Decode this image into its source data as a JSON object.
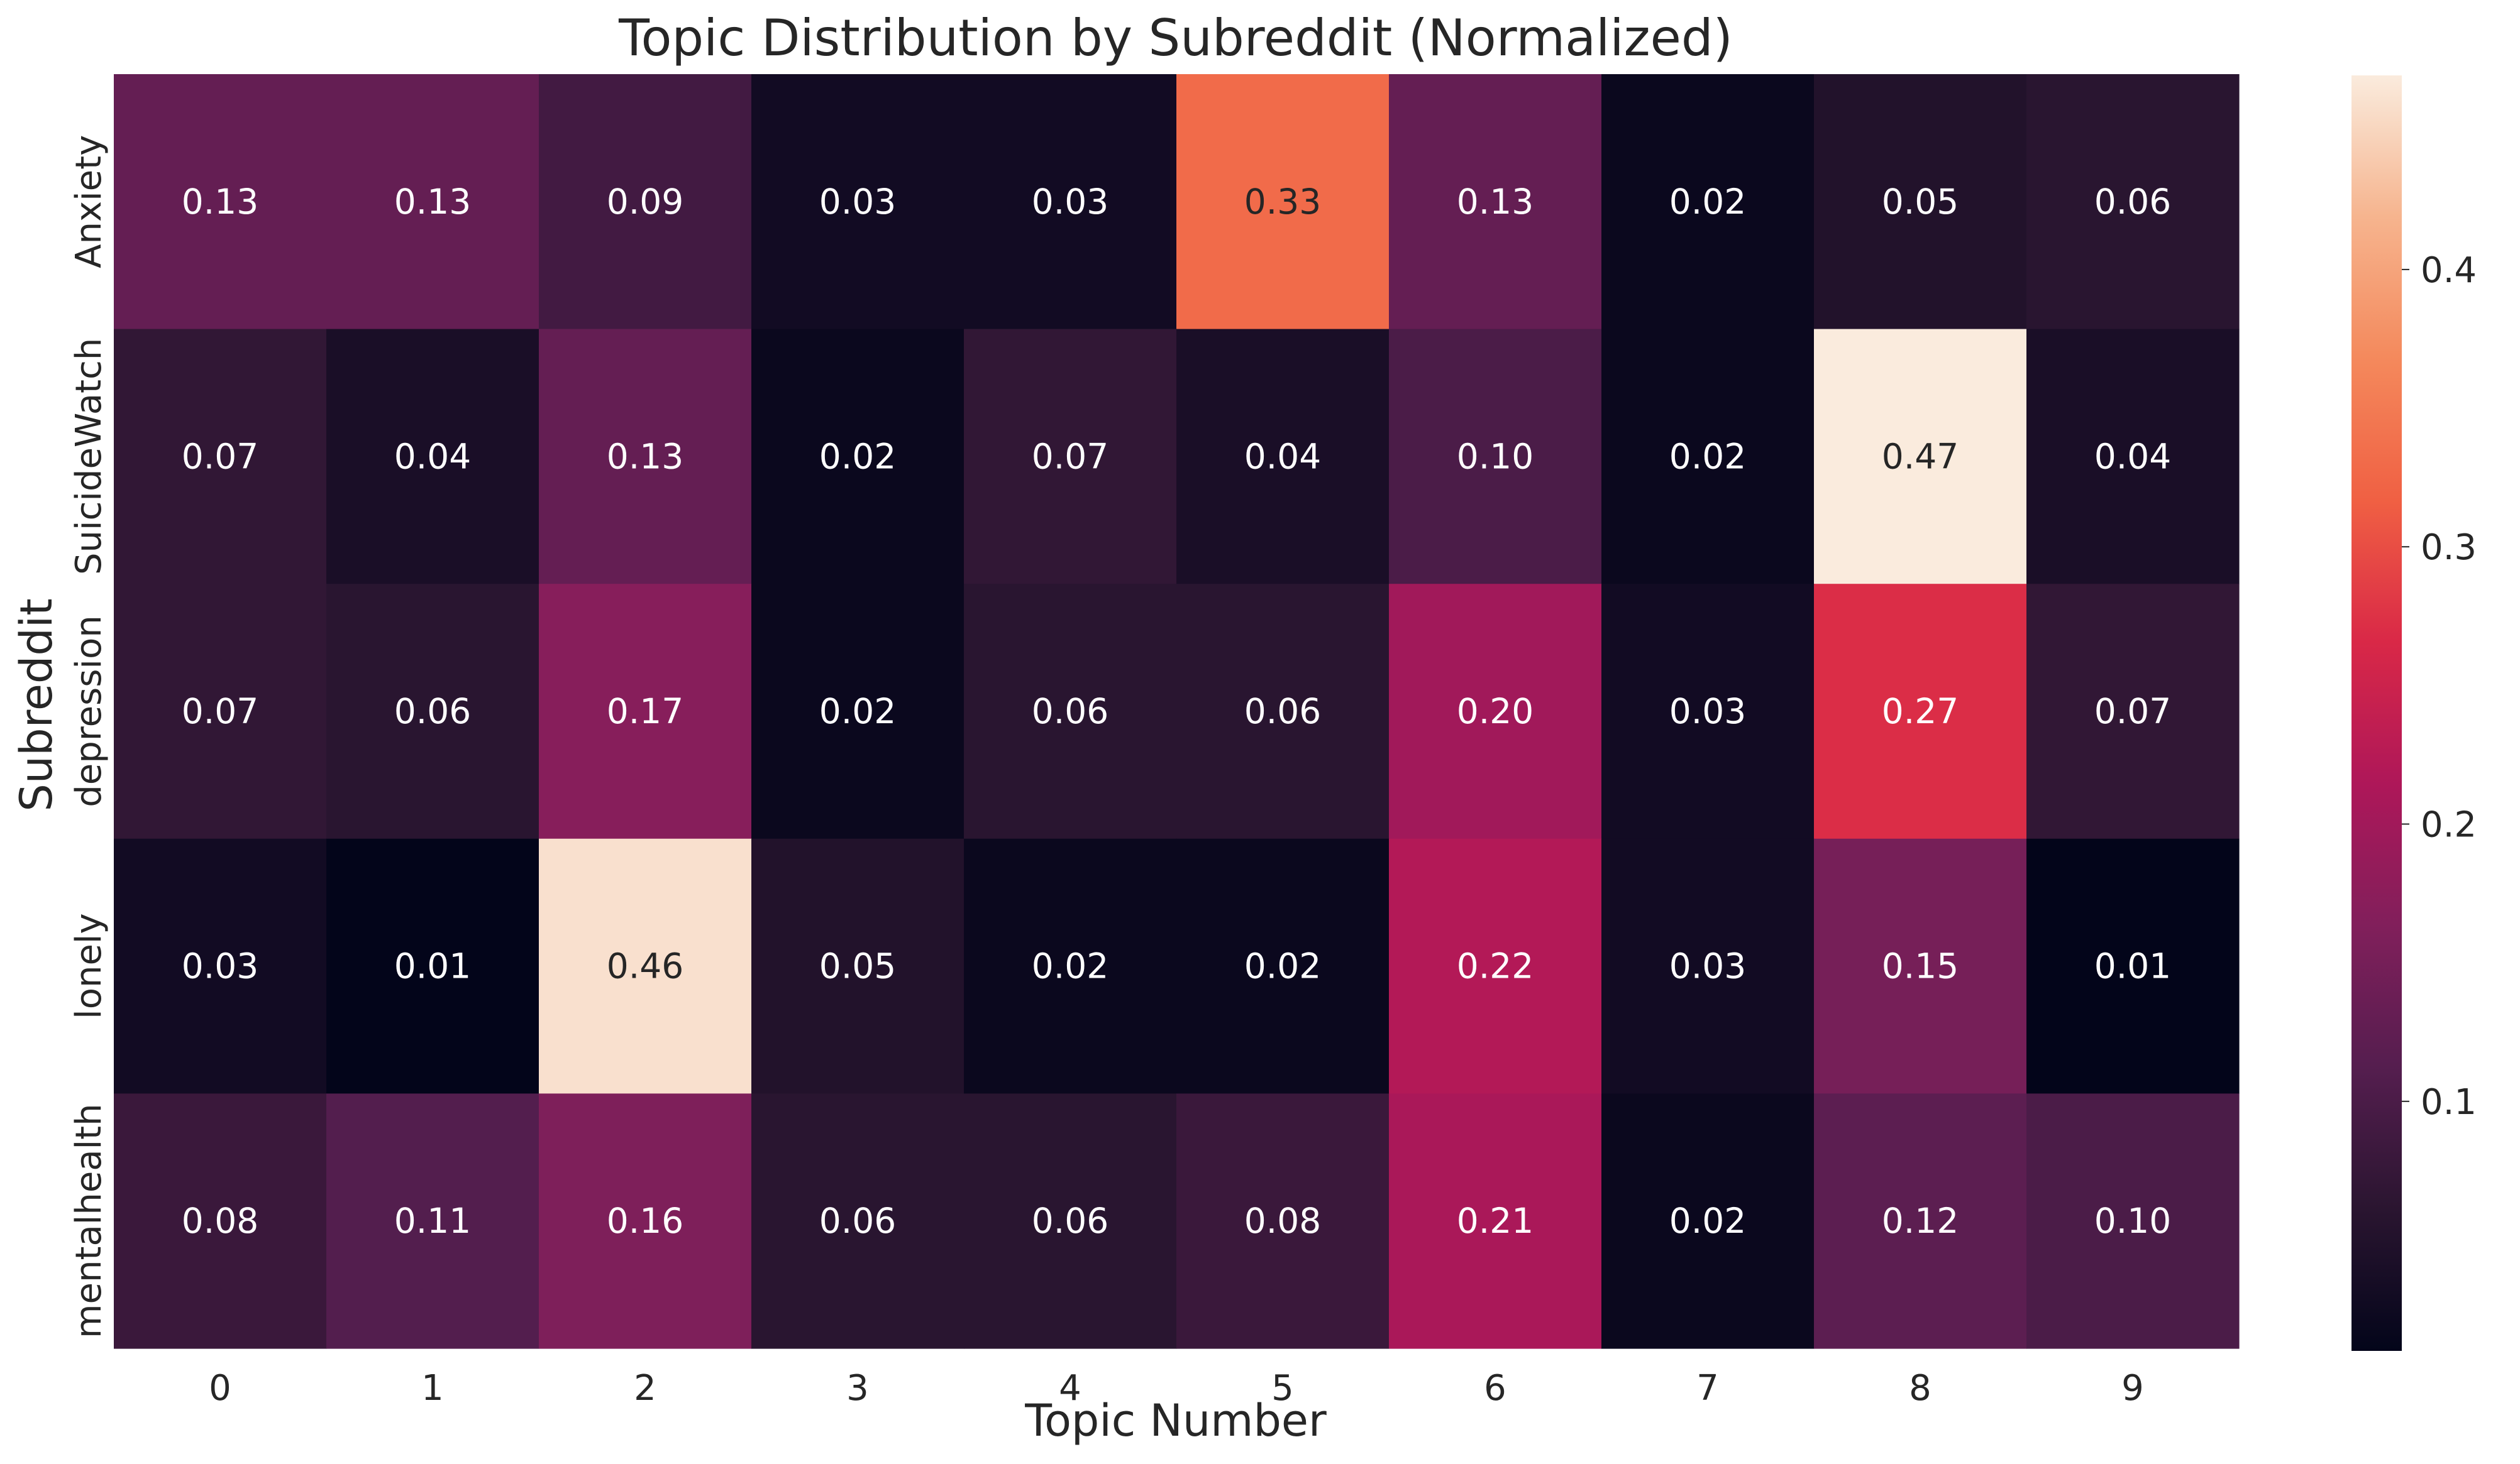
{
  "chart_data": {
    "type": "heatmap",
    "title": "Topic Distribution by Subreddit (Normalized)",
    "xlabel": "Topic Number",
    "ylabel": "Subreddit",
    "x_categories": [
      "0",
      "1",
      "2",
      "3",
      "4",
      "5",
      "6",
      "7",
      "8",
      "9"
    ],
    "y_categories": [
      "Anxiety",
      "SuicideWatch",
      "depression",
      "lonely",
      "mentalhealth"
    ],
    "values": [
      [
        0.13,
        0.13,
        0.09,
        0.03,
        0.03,
        0.33,
        0.13,
        0.02,
        0.05,
        0.06
      ],
      [
        0.07,
        0.04,
        0.13,
        0.02,
        0.07,
        0.04,
        0.1,
        0.02,
        0.47,
        0.04
      ],
      [
        0.07,
        0.06,
        0.17,
        0.02,
        0.06,
        0.06,
        0.2,
        0.03,
        0.27,
        0.07
      ],
      [
        0.03,
        0.01,
        0.46,
        0.05,
        0.02,
        0.02,
        0.22,
        0.03,
        0.15,
        0.01
      ],
      [
        0.08,
        0.11,
        0.16,
        0.06,
        0.06,
        0.08,
        0.21,
        0.02,
        0.12,
        0.1
      ]
    ],
    "value_format": "0.00",
    "colorbar": {
      "min": 0.01,
      "max": 0.47,
      "ticks": [
        0.1,
        0.2,
        0.3,
        0.4
      ],
      "tick_labels": [
        "0.1",
        "0.2",
        "0.3",
        "0.4"
      ],
      "colormap": "rocket",
      "stops": [
        "#03051a",
        "#2a1530",
        "#551e4f",
        "#811f5b",
        "#ae1759",
        "#d92847",
        "#f06043",
        "#f4895c",
        "#f6b48e",
        "#faebdd"
      ]
    },
    "grid": false,
    "legend": "colorbar-right"
  }
}
